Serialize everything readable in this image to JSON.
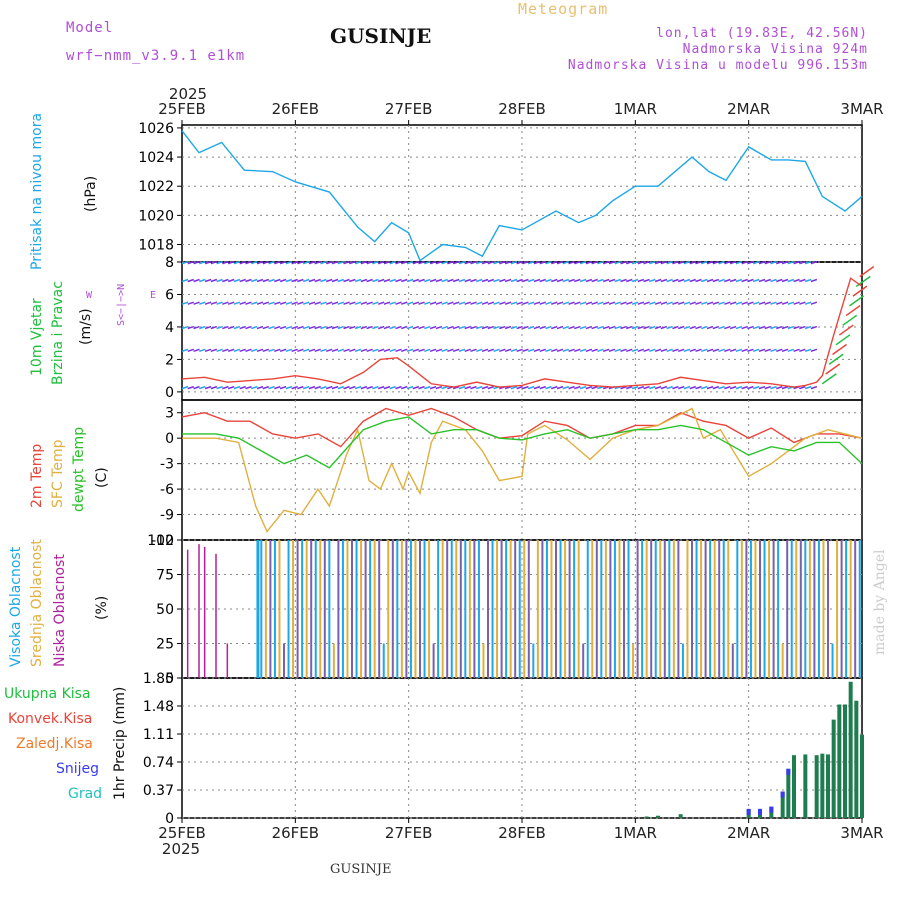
{
  "header": {
    "model_label": "Model",
    "model_value": "wrf−nmm_v3.9.1 e1km",
    "station": "GUSINJE",
    "meteogram": "Meteogram",
    "lonlat": "lon,lat (19.83E, 42.56N)",
    "elev": "Nadmorska Visina 924m",
    "elev_model": "Nadmorska Visina u modelu 996.153m",
    "footer_station": "GUSINJE",
    "watermark": "made by Angel"
  },
  "time_axis": {
    "year": "2025",
    "labels": [
      "25FEB",
      "26FEB",
      "27FEB",
      "28FEB",
      "1MAR",
      "2MAR",
      "3MAR"
    ]
  },
  "colors": {
    "pressure": "#1ea7e6",
    "wind_text": "#1fbf3f",
    "barb_purple": "#7a2fe0",
    "barb_blue": "#2aa5e8",
    "temp2m": "#e8443a",
    "sfc": "#e0b040",
    "dew": "#29c229",
    "cloud_high": "#1ea7e6",
    "cloud_mid": "#e0b040",
    "cloud_low": "#b0209a",
    "precip": "#1e7d4e",
    "convec": "#e8443a",
    "zaledj": "#f07a2a",
    "snow": "#3a3af0",
    "grad": "#20c0c0"
  },
  "panels": {
    "pressure": {
      "label1": "Pritisak na nivou mora",
      "unit": "(hPa)"
    },
    "wind": {
      "label1": "10m Vjetar",
      "label2": "Brzina i Pravac",
      "unit": "(m/s)",
      "compass_ns": "S<−|−>N",
      "compass_w": "W",
      "compass_e": "E"
    },
    "temp": {
      "label1": "2m Temp",
      "label2": "SFC Temp",
      "label3": "dewpt Temp",
      "unit": "(C)"
    },
    "cloud": {
      "label1": "Visoka Oblacnost",
      "label2": "Srednja Oblacnost",
      "label3": "Niska Oblacnost",
      "unit": "(%)"
    },
    "precip": {
      "label1": "Ukupna Kisa",
      "label2": "Konvek.Kisa",
      "label3": "Zaledj.Kisa",
      "label4": "Snijeg",
      "label5": "Grad",
      "unit": "1hr Precip (mm)"
    }
  },
  "chart_data": [
    {
      "type": "line",
      "title": "Pritisak na nivou mora",
      "ylabel": "(hPa)",
      "xlabel": "",
      "ylim": [
        1016.8,
        1026.2
      ],
      "yticks": [
        1018,
        1020,
        1022,
        1024,
        1026
      ],
      "x_unit": "days since 25FEB 00Z",
      "series": [
        {
          "name": "Pritisak na nivou mora",
          "x": [
            0,
            0.15,
            0.35,
            0.55,
            0.8,
            1.0,
            1.3,
            1.55,
            1.7,
            1.85,
            2.0,
            2.1,
            2.3,
            2.5,
            2.65,
            2.8,
            3.0,
            3.3,
            3.5,
            3.65,
            3.8,
            4.0,
            4.2,
            4.5,
            4.65,
            4.8,
            5.0,
            5.2,
            5.35,
            5.5,
            5.65,
            5.85,
            6.0
          ],
          "values": [
            1025.8,
            1024.3,
            1025.0,
            1023.1,
            1023.0,
            1022.3,
            1021.6,
            1019.2,
            1018.2,
            1019.5,
            1018.8,
            1016.9,
            1018.0,
            1017.8,
            1017.2,
            1019.3,
            1019.0,
            1020.3,
            1019.5,
            1020.0,
            1021.0,
            1022.0,
            1022.0,
            1024.0,
            1023.0,
            1022.4,
            1024.7,
            1023.8,
            1023.8,
            1023.7,
            1021.3,
            1020.3,
            1021.3
          ]
        }
      ]
    },
    {
      "type": "line",
      "title": "10m Vjetar Brzina i Pravac",
      "ylabel": "(m/s)",
      "xlabel": "",
      "ylim": [
        -0.5,
        8
      ],
      "yticks": [
        0,
        2,
        4,
        6,
        8
      ],
      "series": [
        {
          "name": "Brzina",
          "x": [
            0,
            0.2,
            0.4,
            0.6,
            0.8,
            1.0,
            1.2,
            1.4,
            1.6,
            1.75,
            1.9,
            2.0,
            2.2,
            2.4,
            2.6,
            2.8,
            3.0,
            3.2,
            3.4,
            3.6,
            3.8,
            4.0,
            4.2,
            4.4,
            4.6,
            4.8,
            5.0,
            5.2,
            5.4,
            5.5,
            5.6,
            5.65,
            5.75,
            5.9,
            6.0
          ],
          "values": [
            0.8,
            0.9,
            0.6,
            0.7,
            0.8,
            1.0,
            0.8,
            0.5,
            1.2,
            2.0,
            2.1,
            1.6,
            0.5,
            0.3,
            0.6,
            0.3,
            0.4,
            0.8,
            0.6,
            0.4,
            0.3,
            0.4,
            0.5,
            0.9,
            0.7,
            0.5,
            0.6,
            0.5,
            0.3,
            0.4,
            0.6,
            1.0,
            3.5,
            7.0,
            6.5
          ]
        }
      ]
    },
    {
      "type": "line",
      "title": "2m Temp / SFC Temp / dewpt Temp",
      "ylabel": "(C)",
      "xlabel": "",
      "ylim": [
        -12,
        4.5
      ],
      "yticks": [
        -12,
        -9,
        -6,
        -3,
        0,
        3
      ],
      "series": [
        {
          "name": "2m Temp",
          "x": [
            0,
            0.2,
            0.4,
            0.6,
            0.8,
            1.0,
            1.2,
            1.4,
            1.6,
            1.8,
            2.0,
            2.2,
            2.4,
            2.6,
            2.8,
            3.0,
            3.2,
            3.4,
            3.6,
            3.8,
            4.0,
            4.2,
            4.4,
            4.6,
            4.8,
            5.0,
            5.2,
            5.4,
            5.6,
            5.8,
            6.0
          ],
          "values": [
            2.5,
            3.0,
            2.0,
            2.0,
            0.5,
            0.0,
            0.5,
            -1.0,
            2.0,
            3.5,
            2.7,
            3.5,
            2.5,
            1.0,
            0.0,
            0.3,
            2.0,
            1.5,
            0.0,
            0.5,
            1.5,
            1.5,
            3.0,
            2.0,
            1.5,
            0.0,
            1.2,
            -0.5,
            0.5,
            0.5,
            0.0
          ]
        },
        {
          "name": "SFC Temp",
          "x": [
            0,
            0.1,
            0.3,
            0.5,
            0.65,
            0.75,
            0.9,
            1.05,
            1.2,
            1.3,
            1.45,
            1.55,
            1.65,
            1.75,
            1.85,
            1.95,
            2.0,
            2.1,
            2.2,
            2.3,
            2.5,
            2.65,
            2.8,
            3.0,
            3.05,
            3.2,
            3.4,
            3.6,
            3.8,
            4.0,
            4.2,
            4.5,
            4.6,
            4.75,
            5.0,
            5.2,
            5.5,
            5.7,
            6.0
          ],
          "values": [
            0.0,
            0.0,
            0.0,
            -0.5,
            -8.0,
            -11.0,
            -8.5,
            -9.0,
            -6.0,
            -8.0,
            -2.0,
            1.0,
            -5.0,
            -6.0,
            -3.0,
            -6.0,
            -4.0,
            -6.5,
            -0.5,
            2.0,
            1.0,
            -1.5,
            -5.0,
            -4.5,
            0.5,
            1.5,
            -0.2,
            -2.5,
            0.0,
            1.0,
            1.5,
            3.5,
            0.0,
            1.0,
            -4.5,
            -3.0,
            0.0,
            1.0,
            0.0
          ]
        },
        {
          "name": "dewpt Temp",
          "x": [
            0,
            0.3,
            0.5,
            0.7,
            0.9,
            1.1,
            1.3,
            1.6,
            1.8,
            2.0,
            2.2,
            2.4,
            2.6,
            2.8,
            3.0,
            3.2,
            3.4,
            3.6,
            3.8,
            4.0,
            4.2,
            4.4,
            4.6,
            4.8,
            5.0,
            5.2,
            5.4,
            5.6,
            5.8,
            6.0
          ],
          "values": [
            0.5,
            0.5,
            0.0,
            -1.5,
            -3.0,
            -2.0,
            -3.5,
            1.0,
            2.0,
            2.5,
            0.5,
            1.0,
            1.0,
            0.0,
            -0.2,
            0.5,
            1.0,
            0.0,
            0.5,
            1.0,
            1.0,
            1.5,
            1.0,
            -0.5,
            -2.0,
            -1.0,
            -1.5,
            -0.5,
            -0.5,
            -3.0
          ]
        }
      ]
    },
    {
      "type": "bar",
      "title": "Visoka / Srednja / Niska Oblacnost",
      "ylabel": "(%)",
      "xlabel": "",
      "ylim": [
        0,
        100
      ],
      "yticks": [
        0,
        25,
        50,
        75,
        100
      ],
      "series": [
        {
          "name": "Niska Oblacnost",
          "x": [
            0.05,
            0.15,
            0.2,
            0.3,
            0.4
          ],
          "values": [
            93,
            97,
            95,
            90,
            25
          ]
        },
        {
          "name": "Visoka Oblacnost",
          "start": 0.67,
          "end": 3.45,
          "typical": 100
        },
        {
          "name": "Srednja Oblacnost",
          "start": 0.7,
          "end": 6.0,
          "typical": 100
        }
      ]
    },
    {
      "type": "bar",
      "title": "1hr Precip",
      "ylabel": "1hr Precip (mm)",
      "xlabel": "",
      "ylim": [
        0,
        1.85
      ],
      "yticks": [
        0,
        0.37,
        0.74,
        1.11,
        1.48,
        1.85
      ],
      "series": [
        {
          "name": "Ukupna Kisa",
          "x": [
            4.1,
            4.2,
            4.4,
            5.0,
            5.1,
            5.2,
            5.3,
            5.35,
            5.4,
            5.5,
            5.6,
            5.65,
            5.7,
            5.75,
            5.8,
            5.85,
            5.9,
            5.95,
            6.0
          ],
          "values": [
            0.02,
            0.03,
            0.05,
            0.12,
            0.12,
            0.15,
            0.35,
            0.65,
            0.83,
            0.84,
            0.83,
            0.85,
            0.84,
            1.3,
            1.5,
            1.5,
            1.8,
            1.55,
            1.1
          ]
        }
      ]
    }
  ]
}
